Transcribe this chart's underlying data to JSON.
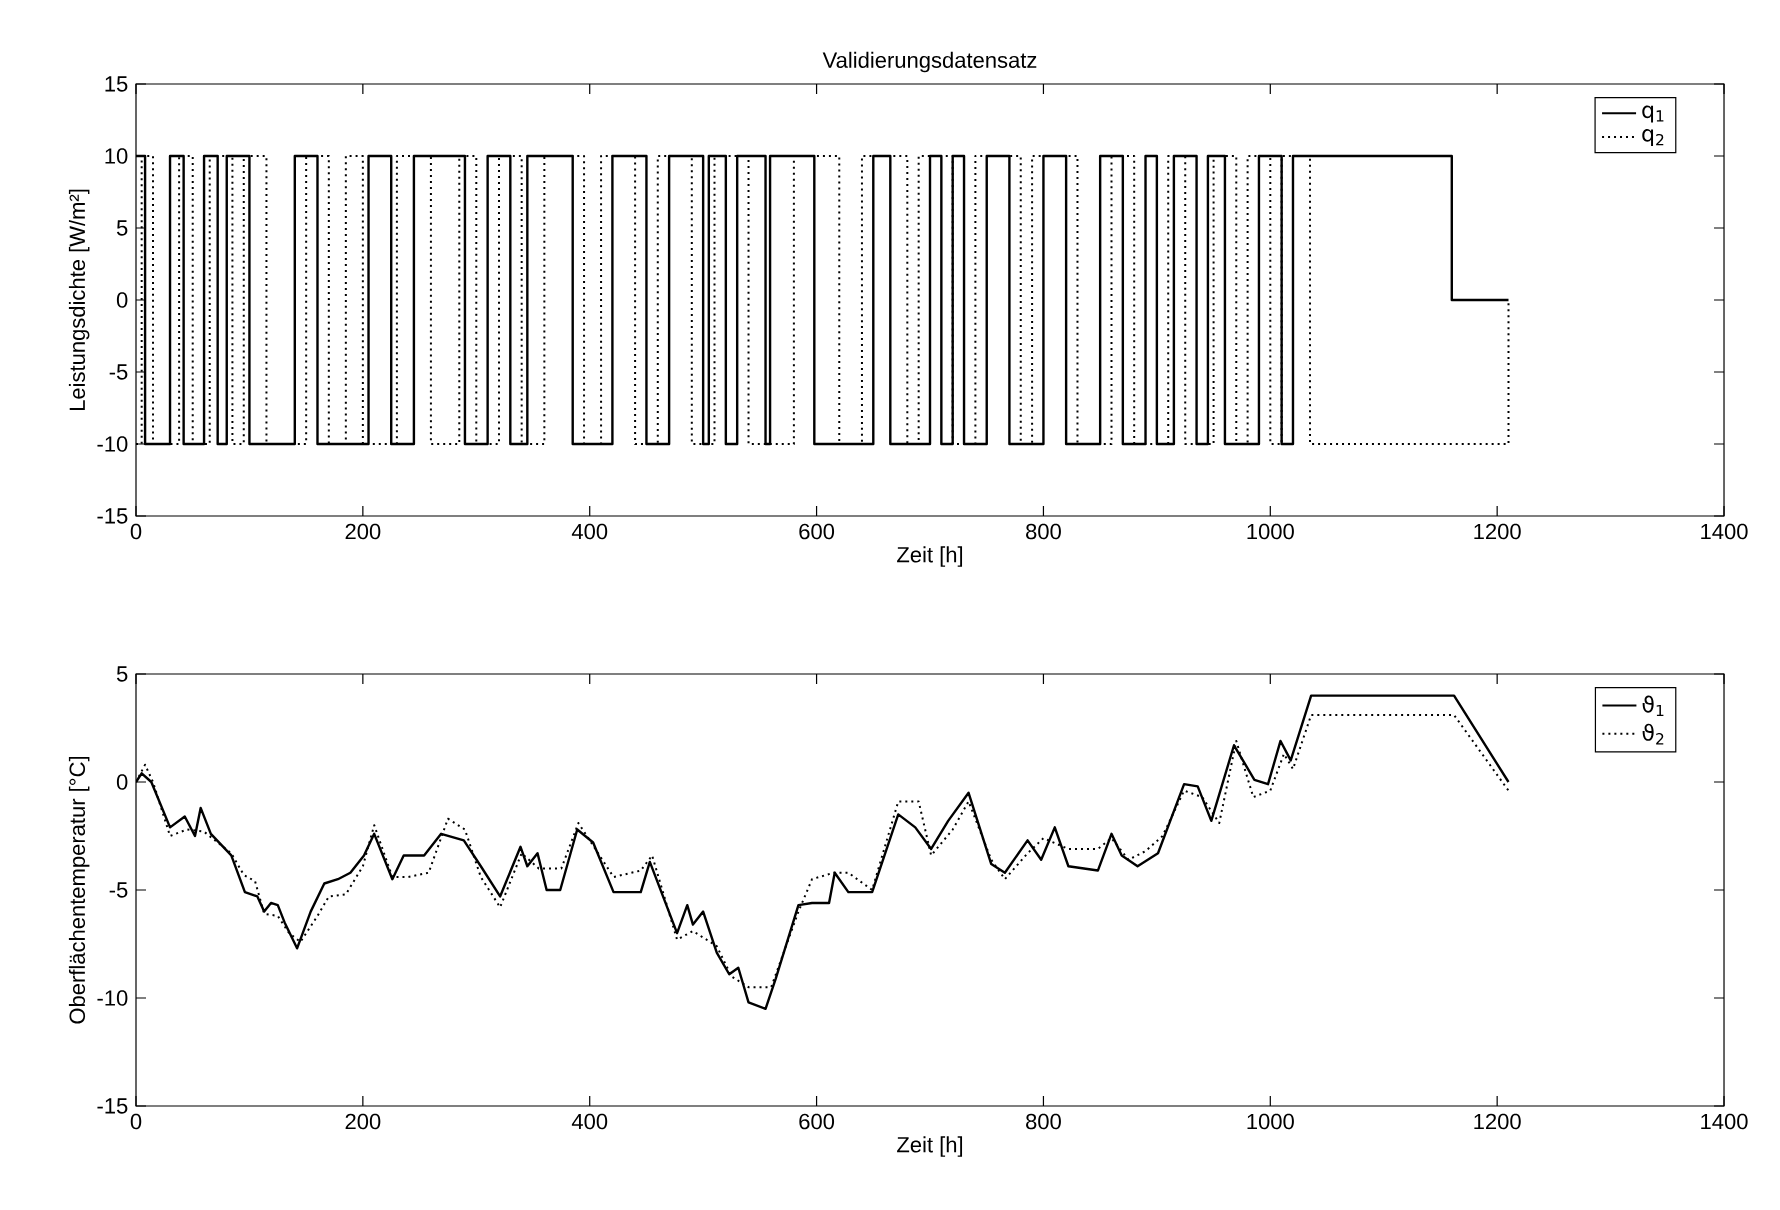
{
  "chart_data": [
    {
      "type": "step",
      "title": "Validierungsdatensatz",
      "xlabel": "Zeit [h]",
      "ylabel": "Leistungsdichte [W/m²]",
      "xlim": [
        0,
        1400
      ],
      "xticks": [
        0,
        200,
        400,
        600,
        800,
        1000,
        1200,
        1400
      ],
      "ylim": [
        -15,
        15
      ],
      "yticks": [
        -15,
        -10,
        -5,
        0,
        5,
        10,
        15
      ],
      "legend": "top right",
      "series": [
        {
          "name": "q$_{1}$",
          "color": "#000000",
          "line_style": "solid",
          "x": [
            0,
            8,
            30,
            42,
            60,
            72,
            80,
            100,
            140,
            160,
            205,
            225,
            245,
            290,
            310,
            330,
            345,
            385,
            420,
            450,
            470,
            500,
            505,
            520,
            530,
            555,
            559,
            598,
            650,
            665,
            700,
            710,
            720,
            730,
            750,
            770,
            800,
            820,
            850,
            870,
            890,
            900,
            915,
            935,
            945,
            960,
            990,
            1010,
            1020,
            1160,
            1210
          ],
          "values": [
            10,
            -10,
            10,
            -10,
            10,
            -10,
            10,
            -10,
            10,
            -10,
            10,
            -10,
            10,
            -10,
            10,
            -10,
            10,
            -10,
            10,
            -10,
            10,
            -10,
            10,
            -10,
            10,
            -10,
            10,
            -10,
            10,
            -10,
            10,
            -10,
            10,
            -10,
            10,
            -10,
            10,
            -10,
            10,
            -10,
            10,
            -10,
            10,
            -10,
            10,
            -10,
            10,
            -10,
            10,
            0,
            0
          ]
        },
        {
          "name": "q$_{2}$",
          "color": "#000000",
          "line_style": "dotted",
          "x": [
            0,
            5,
            15,
            38,
            50,
            65,
            85,
            95,
            115,
            150,
            170,
            185,
            200,
            230,
            260,
            285,
            300,
            320,
            340,
            360,
            395,
            410,
            440,
            460,
            490,
            510,
            540,
            580,
            620,
            640,
            680,
            690,
            720,
            740,
            780,
            790,
            830,
            860,
            880,
            910,
            925,
            950,
            970,
            980,
            1000,
            1010,
            1035,
            1210
          ],
          "values": [
            -10,
            10,
            -10,
            10,
            -10,
            10,
            -10,
            10,
            -10,
            10,
            -10,
            10,
            -10,
            10,
            -10,
            10,
            -10,
            10,
            -10,
            10,
            -10,
            10,
            -10,
            10,
            -10,
            10,
            -10,
            10,
            -10,
            10,
            -10,
            10,
            -10,
            10,
            -10,
            10,
            -10,
            10,
            -10,
            10,
            -10,
            10,
            -10,
            10,
            -10,
            10,
            -10,
            0
          ]
        }
      ]
    },
    {
      "type": "line",
      "xlabel": "Zeit [h]",
      "ylabel": "Oberflächentemperatur [°C]",
      "xlim": [
        0,
        1400
      ],
      "xticks": [
        0,
        200,
        400,
        600,
        800,
        1000,
        1200,
        1400
      ],
      "ylim": [
        -15,
        5
      ],
      "yticks": [
        -15,
        -10,
        -5,
        0,
        5
      ],
      "legend": "top right",
      "series": [
        {
          "name": "ϑ$_{1}$",
          "color": "#000000",
          "line_style": "solid",
          "x": [
            0,
            5,
            13.5,
            30,
            43,
            52,
            57,
            66,
            84,
            96,
            107,
            113,
            119,
            125,
            131,
            142,
            154,
            166,
            178,
            189,
            201,
            210,
            226,
            236,
            254,
            269,
            289,
            304,
            321,
            339,
            345,
            354,
            362,
            374,
            389,
            403,
            421,
            445,
            453,
            477,
            486,
            491,
            500,
            512,
            523,
            531,
            540,
            555,
            564,
            584,
            596,
            611,
            616,
            628,
            649,
            672,
            687,
            701,
            716,
            734,
            754,
            766,
            786,
            798,
            810,
            822,
            848,
            860,
            869,
            883,
            901,
            924,
            936,
            948,
            968,
            986,
            998,
            1009,
            1018,
            1036,
            1162,
            1210
          ],
          "values": [
            0,
            0.4,
            0,
            -2.1,
            -1.6,
            -2.5,
            -1.2,
            -2.4,
            -3.4,
            -5.1,
            -5.3,
            -6.0,
            -5.6,
            -5.7,
            -6.5,
            -7.7,
            -6.0,
            -4.7,
            -4.5,
            -4.2,
            -3.4,
            -2.4,
            -4.5,
            -3.4,
            -3.4,
            -2.4,
            -2.7,
            -3.9,
            -5.3,
            -3.0,
            -3.9,
            -3.3,
            -5.0,
            -5.0,
            -2.2,
            -2.8,
            -5.1,
            -5.1,
            -3.7,
            -7.0,
            -5.7,
            -6.6,
            -6.0,
            -7.9,
            -8.9,
            -8.6,
            -10.2,
            -10.5,
            -9.1,
            -5.7,
            -5.6,
            -5.6,
            -4.2,
            -5.1,
            -5.1,
            -1.5,
            -2.1,
            -3.1,
            -1.8,
            -0.5,
            -3.8,
            -4.2,
            -2.7,
            -3.6,
            -2.1,
            -3.9,
            -4.1,
            -2.4,
            -3.4,
            -3.9,
            -3.3,
            -0.1,
            -0.2,
            -1.8,
            1.7,
            0.1,
            -0.1,
            1.9,
            1.0,
            4.0,
            4.0,
            0
          ]
        },
        {
          "name": "ϑ$_{2}$",
          "color": "#000000",
          "line_style": "dotted",
          "x": [
            0,
            8,
            15,
            30,
            45,
            60,
            84,
            95,
            105,
            113,
            125,
            135,
            145,
            160,
            170,
            185,
            200,
            210,
            226,
            240,
            258,
            275,
            290,
            304,
            321,
            340,
            355,
            375,
            390,
            400,
            421,
            445,
            455,
            477,
            491,
            512,
            525,
            540,
            560,
            584,
            596,
            615,
            628,
            649,
            672,
            690,
            701,
            720,
            734,
            754,
            766,
            786,
            800,
            822,
            848,
            860,
            875,
            890,
            905,
            924,
            940,
            955,
            970,
            985,
            1000,
            1012,
            1020,
            1036,
            1162,
            1210
          ],
          "values": [
            0,
            0.8,
            0,
            -2.5,
            -2.2,
            -2.3,
            -3.3,
            -4.3,
            -4.6,
            -6.1,
            -6.2,
            -7.0,
            -7.4,
            -6.2,
            -5.3,
            -5.2,
            -3.9,
            -2.0,
            -4.4,
            -4.4,
            -4.2,
            -1.7,
            -2.2,
            -4.4,
            -5.8,
            -3.3,
            -4.0,
            -4.0,
            -1.9,
            -2.7,
            -4.4,
            -4.1,
            -3.4,
            -7.3,
            -6.9,
            -7.6,
            -9.0,
            -9.5,
            -9.5,
            -6.0,
            -4.5,
            -4.2,
            -4.2,
            -5.0,
            -0.9,
            -0.9,
            -3.4,
            -2.2,
            -0.9,
            -3.6,
            -4.5,
            -3.3,
            -2.6,
            -3.1,
            -3.1,
            -2.6,
            -3.6,
            -3.2,
            -2.5,
            -0.4,
            -0.7,
            -1.9,
            1.9,
            -0.7,
            -0.4,
            1.3,
            0.6,
            3.1,
            3.1,
            -0.4
          ]
        }
      ]
    }
  ]
}
